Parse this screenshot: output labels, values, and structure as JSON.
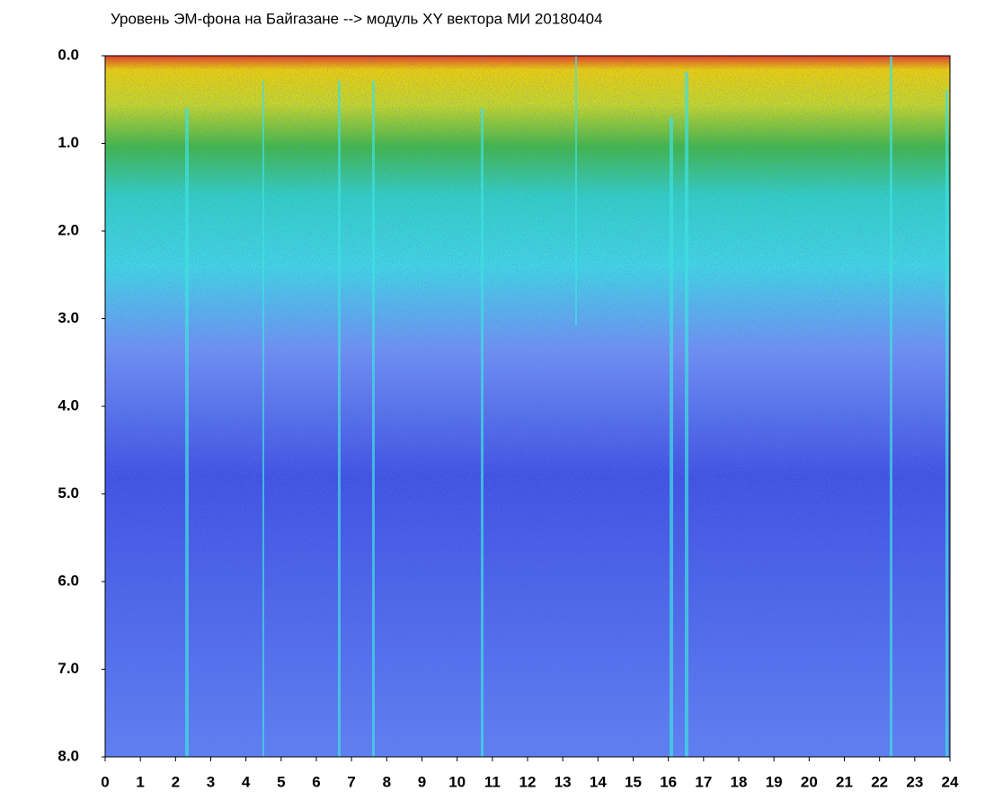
{
  "chart_data": {
    "type": "heatmap",
    "title": "Уровень ЭМ-фона на Байгазане  -->  модуль XY вектора МИ  20180404",
    "xlim": [
      0,
      24
    ],
    "xticks": [
      0,
      1,
      2,
      3,
      4,
      5,
      6,
      7,
      8,
      9,
      10,
      11,
      12,
      13,
      14,
      15,
      16,
      17,
      18,
      19,
      20,
      21,
      22,
      23,
      24
    ],
    "ylim": [
      8,
      0
    ],
    "yticks": [
      {
        "value": 0,
        "label": "0.0"
      },
      {
        "value": 1,
        "label": "1.0"
      },
      {
        "value": 2,
        "label": "2.0"
      },
      {
        "value": 3,
        "label": "3.0"
      },
      {
        "value": 4,
        "label": "4.0"
      },
      {
        "value": 5,
        "label": "5.0"
      },
      {
        "value": 6,
        "label": "6.0"
      },
      {
        "value": 7,
        "label": "7.0"
      },
      {
        "value": 8,
        "label": "8.0"
      }
    ]
  }
}
